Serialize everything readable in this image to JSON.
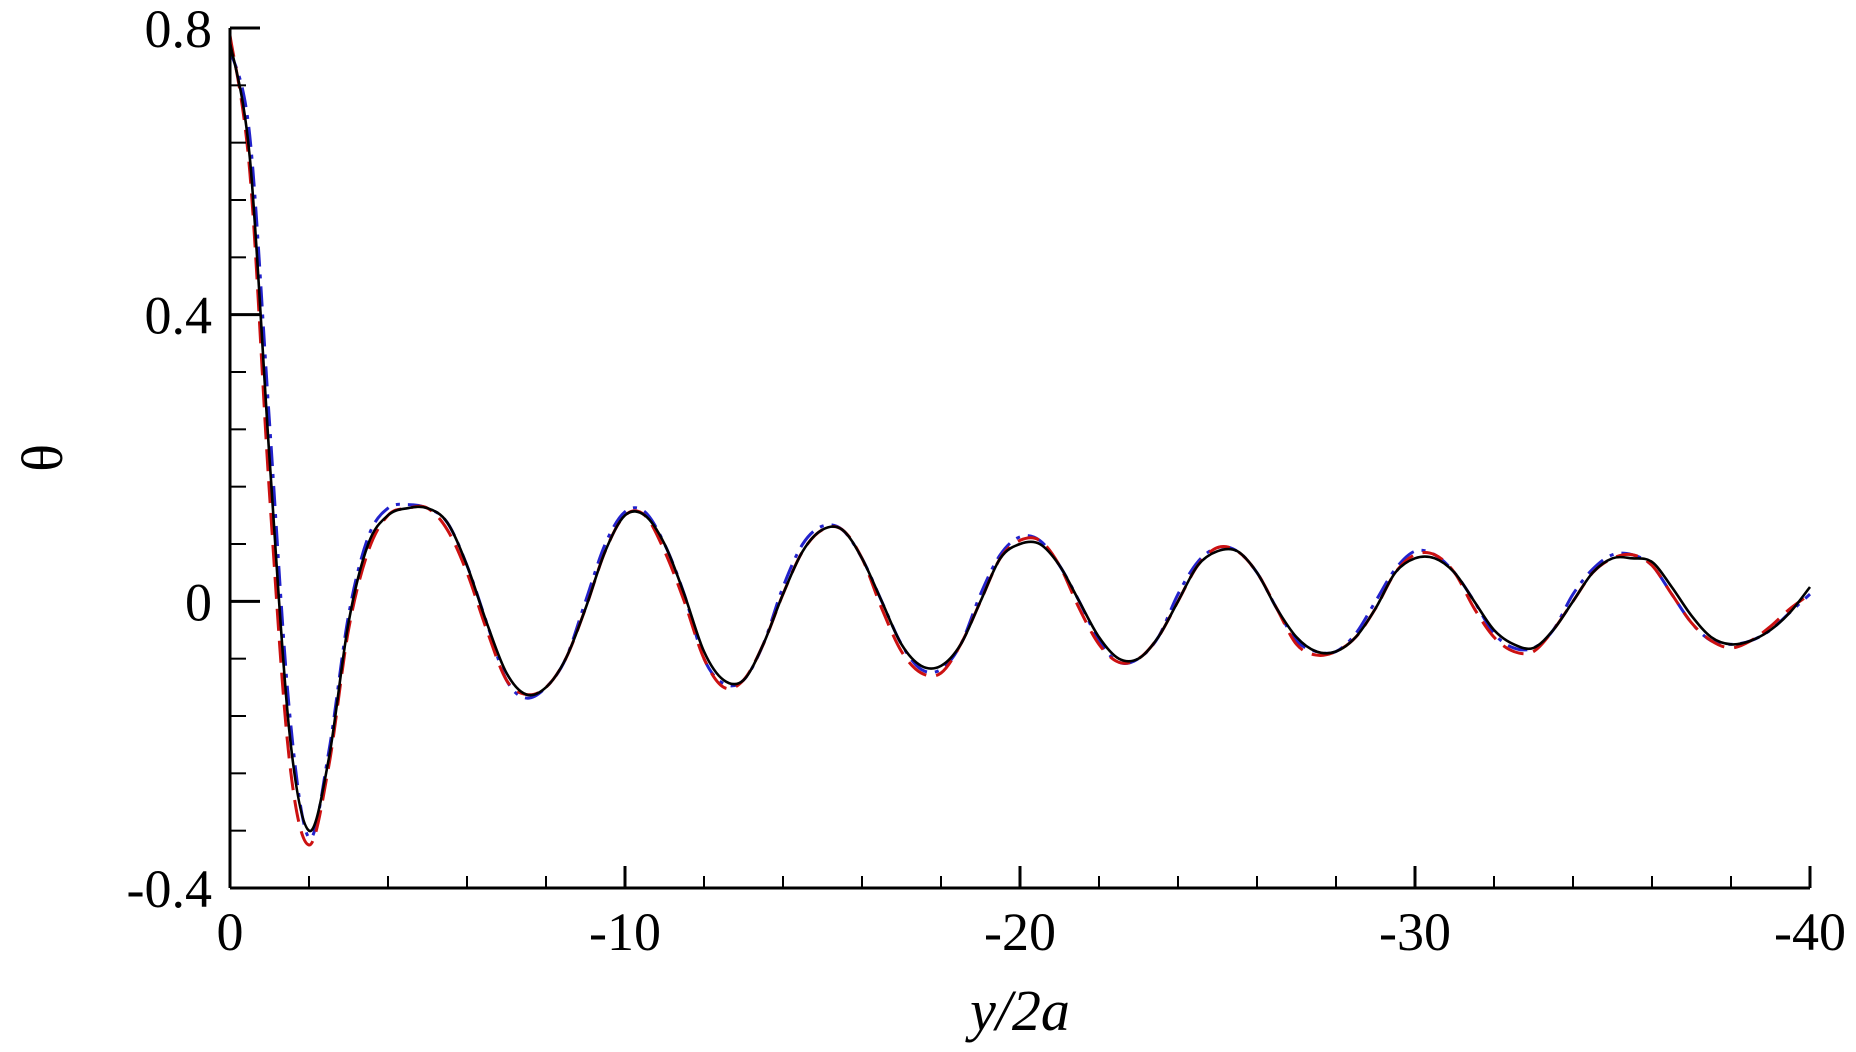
{
  "chart_data": {
    "type": "line",
    "title": "",
    "xlabel": "y/2a",
    "ylabel": "θ",
    "xlim": [
      0,
      -40
    ],
    "ylim": [
      -0.4,
      0.8
    ],
    "grid": false,
    "legend": "none",
    "x_ticks": [
      0,
      -10,
      -20,
      -30,
      -40
    ],
    "x_tick_labels": [
      "0",
      "-10",
      "-20",
      "-30",
      "-40"
    ],
    "x_minor_ticks": [
      -2,
      -4,
      -6,
      -8,
      -12,
      -14,
      -16,
      -18,
      -22,
      -24,
      -26,
      -28,
      -32,
      -34,
      -36,
      -38
    ],
    "y_ticks": [
      -0.4,
      0,
      0.4,
      0.8
    ],
    "y_tick_labels": [
      "-0.4",
      "0",
      "0.4",
      "0.8"
    ],
    "y_minor_ticks": [
      -0.32,
      -0.24,
      -0.16,
      -0.08,
      0.08,
      0.16,
      0.24,
      0.32,
      0.48,
      0.56,
      0.64,
      0.72
    ],
    "series": [
      {
        "color": "#000000",
        "dash": "solid",
        "x": [
          0,
          -0.5,
          -1,
          -1.5,
          -2,
          -2.5,
          -3,
          -3.5,
          -4,
          -4.5,
          -5,
          -5.5,
          -6,
          -6.5,
          -7,
          -7.5,
          -8,
          -8.5,
          -9,
          -9.5,
          -10,
          -10.5,
          -11,
          -11.5,
          -12,
          -12.5,
          -13,
          -13.5,
          -14,
          -14.5,
          -15,
          -15.5,
          -16,
          -16.5,
          -17,
          -17.5,
          -18,
          -18.5,
          -19,
          -19.5,
          -20,
          -20.5,
          -21,
          -21.5,
          -22,
          -22.5,
          -23,
          -23.5,
          -24,
          -24.5,
          -25,
          -25.5,
          -26,
          -26.5,
          -27,
          -27.5,
          -28,
          -28.5,
          -29,
          -29.5,
          -30,
          -30.5,
          -31,
          -31.5,
          -32,
          -32.5,
          -33,
          -33.5,
          -34,
          -34.5,
          -35,
          -35.5,
          -36,
          -36.5,
          -37,
          -37.5,
          -38,
          -38.5,
          -39,
          -39.5,
          -40
        ],
        "y": [
          0.78,
          0.62,
          0.2,
          -0.18,
          -0.32,
          -0.22,
          -0.03,
          0.08,
          0.12,
          0.13,
          0.13,
          0.11,
          0.05,
          -0.03,
          -0.1,
          -0.13,
          -0.12,
          -0.08,
          -0.01,
          0.07,
          0.12,
          0.12,
          0.08,
          0.01,
          -0.07,
          -0.11,
          -0.11,
          -0.06,
          0.01,
          0.07,
          0.1,
          0.1,
          0.06,
          0.0,
          -0.06,
          -0.09,
          -0.09,
          -0.06,
          0.0,
          0.06,
          0.08,
          0.08,
          0.05,
          0.0,
          -0.05,
          -0.08,
          -0.08,
          -0.05,
          0.0,
          0.05,
          0.07,
          0.07,
          0.04,
          -0.01,
          -0.05,
          -0.07,
          -0.07,
          -0.05,
          -0.01,
          0.04,
          0.06,
          0.06,
          0.04,
          0.0,
          -0.04,
          -0.06,
          -0.065,
          -0.04,
          0.0,
          0.04,
          0.06,
          0.06,
          0.055,
          0.02,
          -0.02,
          -0.05,
          -0.06,
          -0.055,
          -0.04,
          -0.015,
          0.02
        ]
      },
      {
        "color": "#cc1111",
        "dash": "long-dash",
        "x": [
          0,
          -0.5,
          -1,
          -1.5,
          -2,
          -2.5,
          -3,
          -3.5,
          -4,
          -4.5,
          -5,
          -5.5,
          -6,
          -6.5,
          -7,
          -7.5,
          -8,
          -8.5,
          -9,
          -9.5,
          -10,
          -10.5,
          -11,
          -11.5,
          -12,
          -12.5,
          -13,
          -13.5,
          -14,
          -14.5,
          -15,
          -15.5,
          -16,
          -16.5,
          -17,
          -17.5,
          -18,
          -18.5,
          -19,
          -19.5,
          -20,
          -20.5,
          -21,
          -21.5,
          -22,
          -22.5,
          -23,
          -23.5,
          -24,
          -24.5,
          -25,
          -25.5,
          -26,
          -26.5,
          -27,
          -27.5,
          -28,
          -28.5,
          -29,
          -29.5,
          -30,
          -30.5,
          -31,
          -31.5,
          -32,
          -32.5,
          -33,
          -33.5,
          -34,
          -34.5,
          -35,
          -35.5,
          -36,
          -36.5,
          -37,
          -37.5,
          -38,
          -38.5,
          -39,
          -39.5,
          -40
        ],
        "y": [
          0.79,
          0.6,
          0.15,
          -0.22,
          -0.34,
          -0.23,
          -0.04,
          0.07,
          0.12,
          0.13,
          0.13,
          0.1,
          0.04,
          -0.04,
          -0.11,
          -0.13,
          -0.12,
          -0.08,
          -0.01,
          0.07,
          0.12,
          0.12,
          0.07,
          0.0,
          -0.08,
          -0.12,
          -0.11,
          -0.06,
          0.01,
          0.07,
          0.1,
          0.1,
          0.06,
          -0.01,
          -0.07,
          -0.1,
          -0.1,
          -0.06,
          0.0,
          0.06,
          0.085,
          0.085,
          0.05,
          -0.01,
          -0.06,
          -0.085,
          -0.08,
          -0.05,
          0.0,
          0.05,
          0.075,
          0.07,
          0.04,
          -0.01,
          -0.06,
          -0.075,
          -0.07,
          -0.05,
          -0.01,
          0.04,
          0.065,
          0.065,
          0.04,
          -0.01,
          -0.05,
          -0.07,
          -0.07,
          -0.04,
          0.0,
          0.04,
          0.06,
          0.065,
          0.05,
          0.01,
          -0.03,
          -0.055,
          -0.065,
          -0.055,
          -0.035,
          -0.01,
          0.01
        ]
      },
      {
        "color": "#2222cc",
        "dash": "dash-dot",
        "x": [
          0,
          -0.5,
          -1,
          -1.5,
          -2,
          -2.5,
          -3,
          -3.5,
          -4,
          -4.5,
          -5,
          -5.5,
          -6,
          -6.5,
          -7,
          -7.5,
          -8,
          -8.5,
          -9,
          -9.5,
          -10,
          -10.5,
          -11,
          -11.5,
          -12,
          -12.5,
          -13,
          -13.5,
          -14,
          -14.5,
          -15,
          -15.5,
          -16,
          -16.5,
          -17,
          -17.5,
          -18,
          -18.5,
          -19,
          -19.5,
          -20,
          -20.5,
          -21,
          -21.5,
          -22,
          -22.5,
          -23,
          -23.5,
          -24,
          -24.5,
          -25,
          -25.5,
          -26,
          -26.5,
          -27,
          -27.5,
          -28,
          -28.5,
          -29,
          -29.5,
          -30,
          -30.5,
          -31,
          -31.5,
          -32,
          -32.5,
          -33,
          -33.5,
          -34,
          -34.5,
          -35,
          -35.5,
          -36,
          -36.5,
          -37,
          -37.5,
          -38,
          -38.5,
          -39,
          -39.5,
          -40
        ],
        "y": [
          0.77,
          0.65,
          0.25,
          -0.15,
          -0.33,
          -0.21,
          -0.02,
          0.09,
          0.13,
          0.135,
          0.13,
          0.11,
          0.05,
          -0.03,
          -0.11,
          -0.135,
          -0.12,
          -0.08,
          0.0,
          0.08,
          0.125,
          0.125,
          0.08,
          0.01,
          -0.08,
          -0.115,
          -0.11,
          -0.06,
          0.02,
          0.08,
          0.105,
          0.1,
          0.06,
          0.0,
          -0.06,
          -0.095,
          -0.095,
          -0.06,
          0.01,
          0.065,
          0.09,
          0.085,
          0.05,
          0.0,
          -0.055,
          -0.085,
          -0.08,
          -0.05,
          0.01,
          0.055,
          0.075,
          0.07,
          0.04,
          -0.01,
          -0.055,
          -0.07,
          -0.07,
          -0.045,
          0.0,
          0.045,
          0.07,
          0.065,
          0.04,
          0.0,
          -0.045,
          -0.065,
          -0.065,
          -0.04,
          0.01,
          0.045,
          0.065,
          0.065,
          0.05,
          0.01,
          -0.03,
          -0.055,
          -0.06,
          -0.055,
          -0.04,
          -0.015,
          0.01
        ]
      }
    ]
  }
}
